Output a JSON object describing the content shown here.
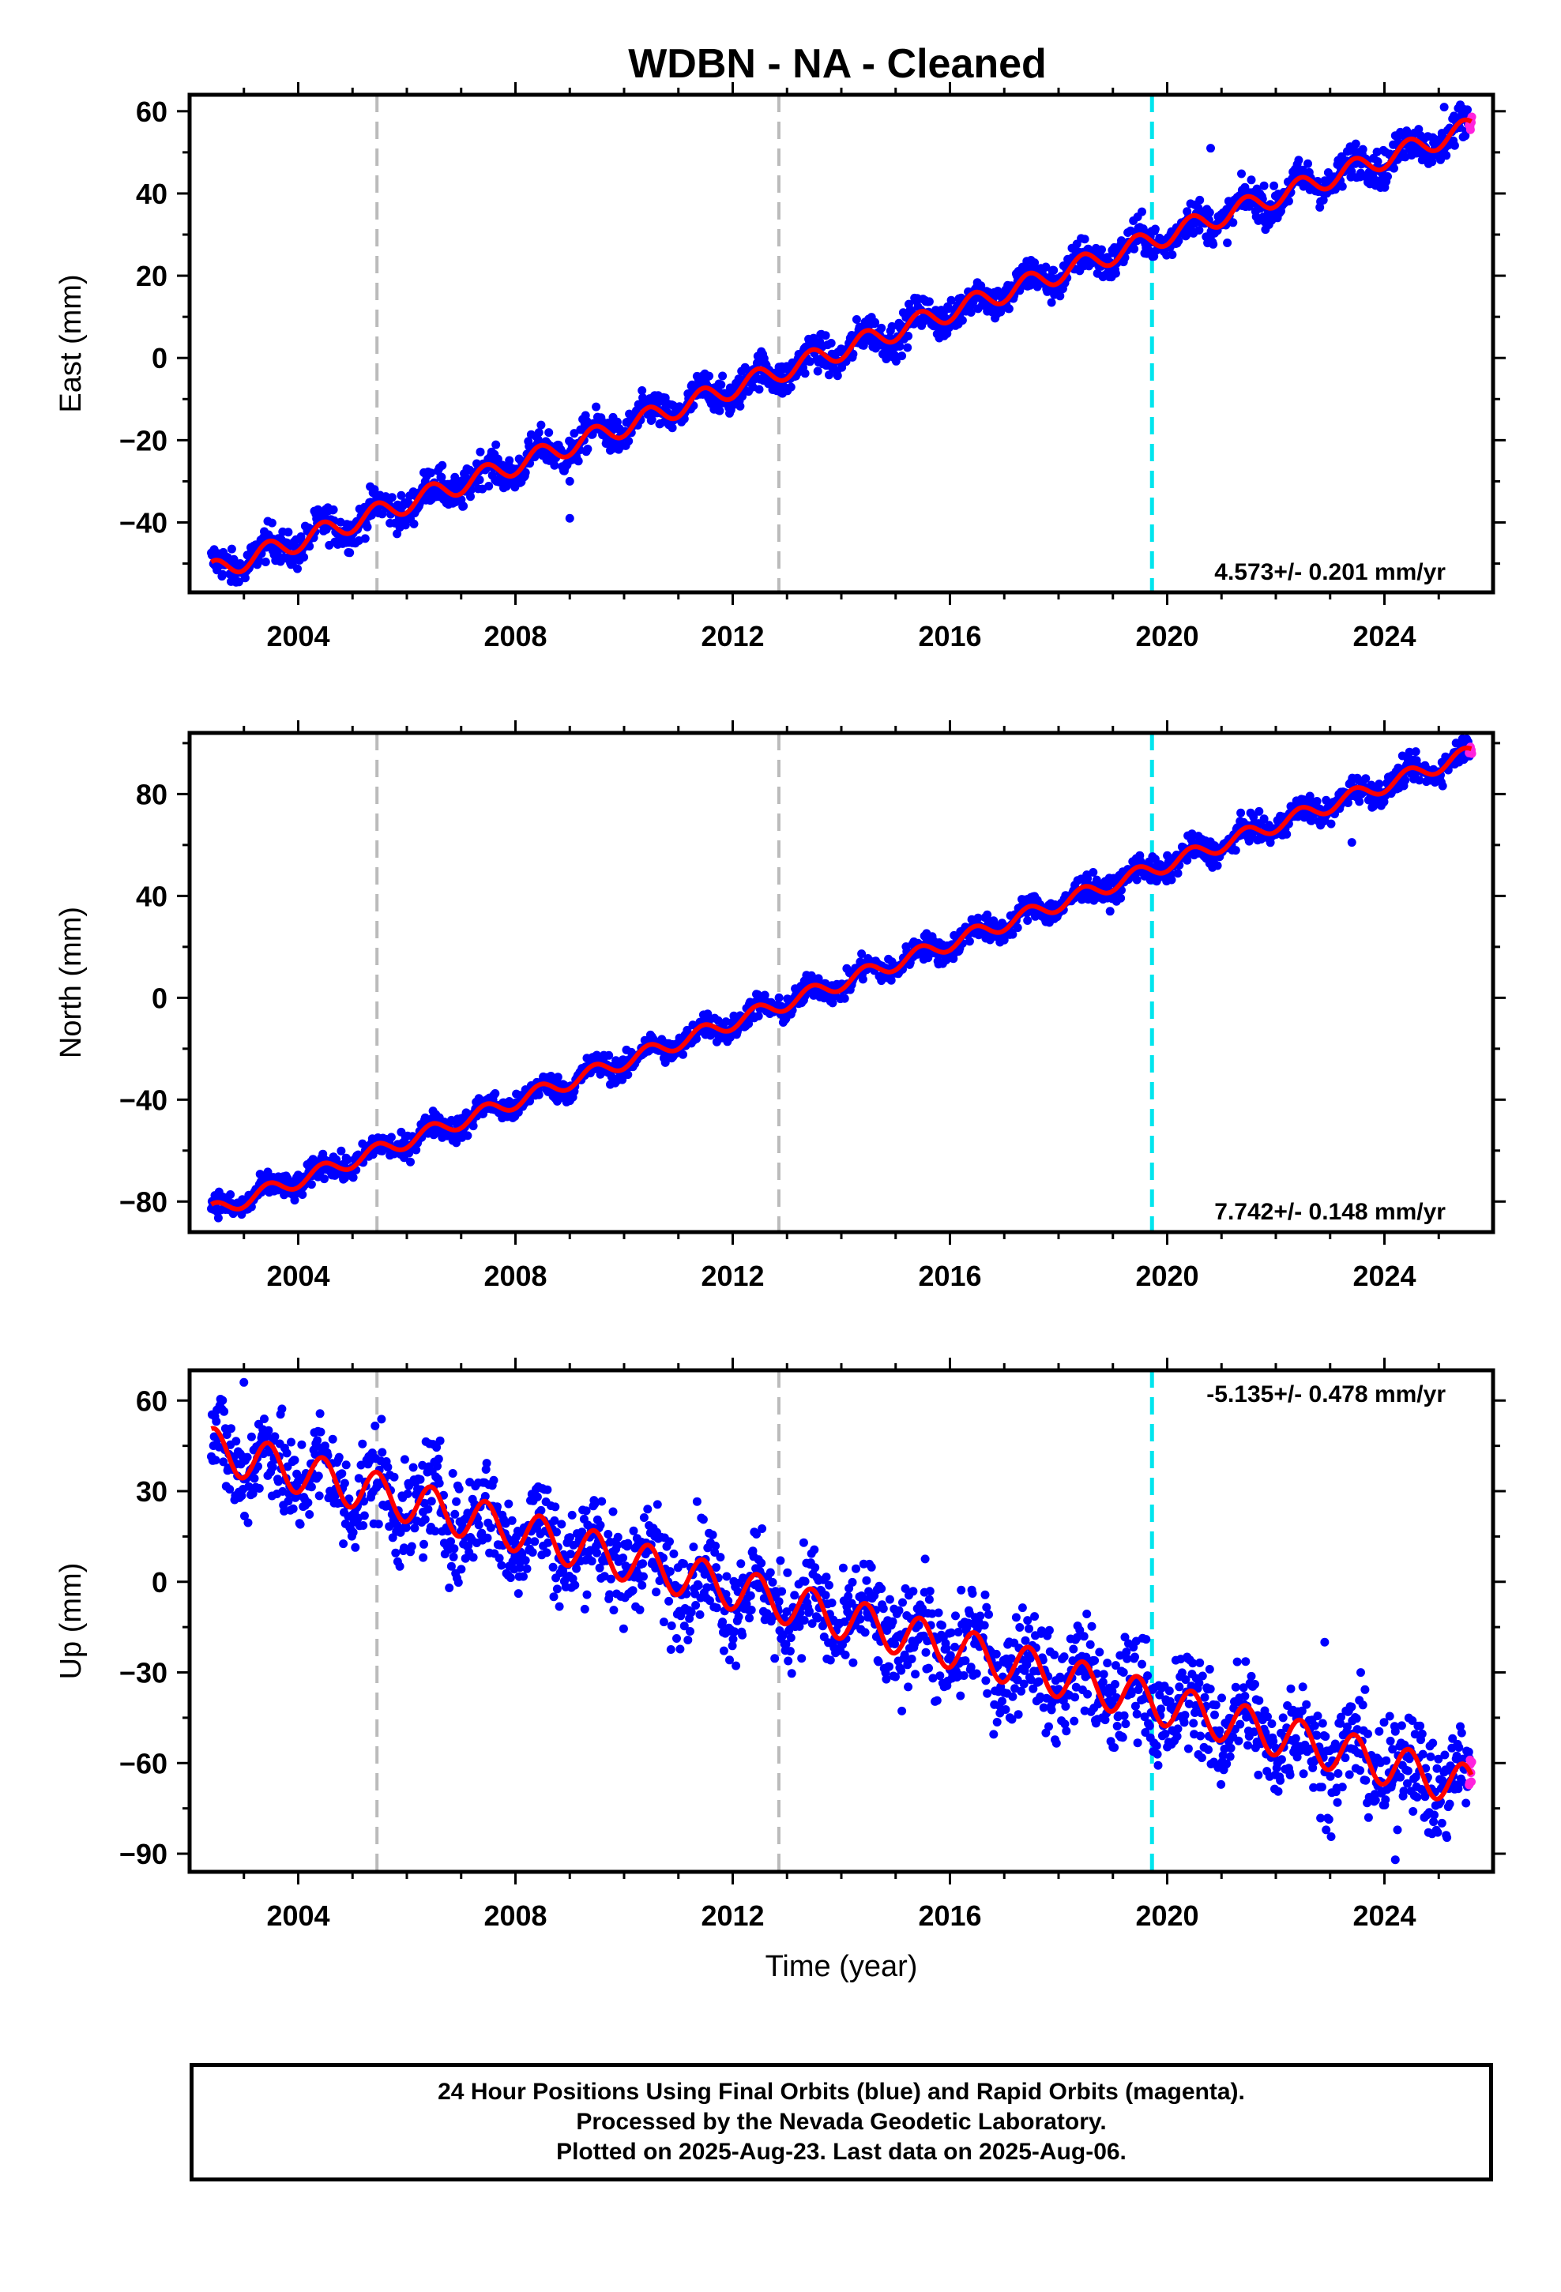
{
  "title": "WDBN  - NA - Cleaned",
  "colors": {
    "final_orbits": "#0000ff",
    "rapid_orbits": "#ff22dd",
    "model": "#ff0000",
    "equipment_change": "#bbbbbb",
    "special_event": "#00e5ee"
  },
  "footer": {
    "line1": "24 Hour Positions Using Final Orbits (blue) and Rapid Orbits (magenta).",
    "line2": "Processed by the Nevada Geodetic Laboratory.",
    "line3": "Plotted on 2025-Aug-23. Last data on 2025-Aug-06."
  },
  "chart_data": [
    {
      "type": "scatter",
      "ylabel": "East (mm)",
      "xlabel": "",
      "xlim": [
        2002.0,
        2026.0
      ],
      "ylim": [
        -57,
        64
      ],
      "xticks": [
        2004,
        2008,
        2012,
        2016,
        2020,
        2024
      ],
      "yticks": [
        -40,
        -20,
        0,
        20,
        40,
        60
      ],
      "rate_label": "4.573+/- 0.201 mm/yr",
      "rate_position": "bottom-right",
      "vertical_lines": [
        {
          "x": 2005.45,
          "color": "gray"
        },
        {
          "x": 2012.85,
          "color": "gray"
        },
        {
          "x": 2019.72,
          "color": "cyan"
        }
      ],
      "model": {
        "start": [
          2002.4,
          -52
        ],
        "end": [
          2025.6,
          56
        ],
        "seasonal_amplitude": 2.5,
        "noise": 2.2
      },
      "outliers": [
        [
          2009.0,
          -30
        ],
        [
          2009.0,
          -39
        ],
        [
          2020.8,
          51
        ],
        [
          2025.1,
          61
        ]
      ]
    },
    {
      "type": "scatter",
      "ylabel": "North (mm)",
      "xlabel": "",
      "xlim": [
        2002.0,
        2026.0
      ],
      "ylim": [
        -92,
        104
      ],
      "xticks": [
        2004,
        2008,
        2012,
        2016,
        2020,
        2024
      ],
      "yticks": [
        -80,
        -40,
        0,
        40,
        80
      ],
      "rate_label": "7.742+/- 0.148 mm/yr",
      "rate_position": "bottom-right",
      "vertical_lines": [
        {
          "x": 2005.45,
          "color": "gray"
        },
        {
          "x": 2012.85,
          "color": "gray"
        },
        {
          "x": 2019.72,
          "color": "cyan"
        }
      ],
      "model": {
        "start": [
          2002.4,
          -84
        ],
        "end": [
          2025.6,
          96
        ],
        "seasonal_amplitude": 3.0,
        "noise": 2.5
      },
      "outliers": [
        [
          2023.4,
          61
        ],
        [
          2024.3,
          85
        ]
      ]
    },
    {
      "type": "scatter",
      "ylabel": "Up (mm)",
      "xlabel": "Time (year)",
      "xlim": [
        2002.0,
        2026.0
      ],
      "ylim": [
        -96,
        70
      ],
      "xticks": [
        2004,
        2008,
        2012,
        2016,
        2020,
        2024
      ],
      "yticks": [
        -90,
        -60,
        -30,
        0,
        30,
        60
      ],
      "rate_label": "-5.135+/- 0.478 mm/yr",
      "rate_position": "top-right",
      "vertical_lines": [
        {
          "x": 2005.45,
          "color": "gray"
        },
        {
          "x": 2012.85,
          "color": "gray"
        },
        {
          "x": 2019.72,
          "color": "cyan"
        }
      ],
      "model": {
        "start": [
          2002.4,
          44
        ],
        "end": [
          2025.6,
          -68
        ],
        "seasonal_amplitude": 7.0,
        "noise": 8.5
      },
      "outliers": [
        [
          2003.0,
          66
        ],
        [
          2006.3,
          8
        ],
        [
          2024.2,
          -92
        ],
        [
          2022.9,
          -20
        ]
      ]
    }
  ]
}
